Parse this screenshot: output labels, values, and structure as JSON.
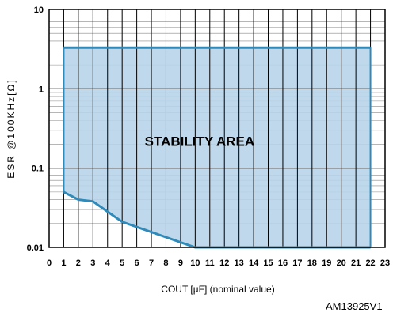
{
  "chart_data": {
    "type": "area",
    "xlabel": "COUT [µF] (nominal value)",
    "ylabel": "ESR @100KHz[Ω]",
    "y_scale": "log",
    "xlim": [
      0,
      23
    ],
    "ylim": [
      0.01,
      10
    ],
    "x_ticks": [
      "0",
      "1",
      "2",
      "3",
      "4",
      "5",
      "6",
      "7",
      "8",
      "9",
      "10",
      "11",
      "12",
      "13",
      "14",
      "15",
      "16",
      "17",
      "18",
      "19",
      "20",
      "21",
      "22",
      "23"
    ],
    "y_ticks": [
      "10",
      "1",
      "0.1",
      "0.01"
    ],
    "grid": true,
    "region_label": "STABILITY AREA",
    "fill_color": "#b8d4ea",
    "line_color": "#2f8ab9",
    "upper_boundary": {
      "x": [
        1,
        22
      ],
      "y": [
        3.3,
        3.3
      ]
    },
    "lower_boundary": {
      "x": [
        1,
        2,
        3,
        5,
        10,
        22
      ],
      "y": [
        0.05,
        0.04,
        0.038,
        0.021,
        0.01,
        0.01
      ]
    }
  },
  "figure_code": "AM13925V1"
}
